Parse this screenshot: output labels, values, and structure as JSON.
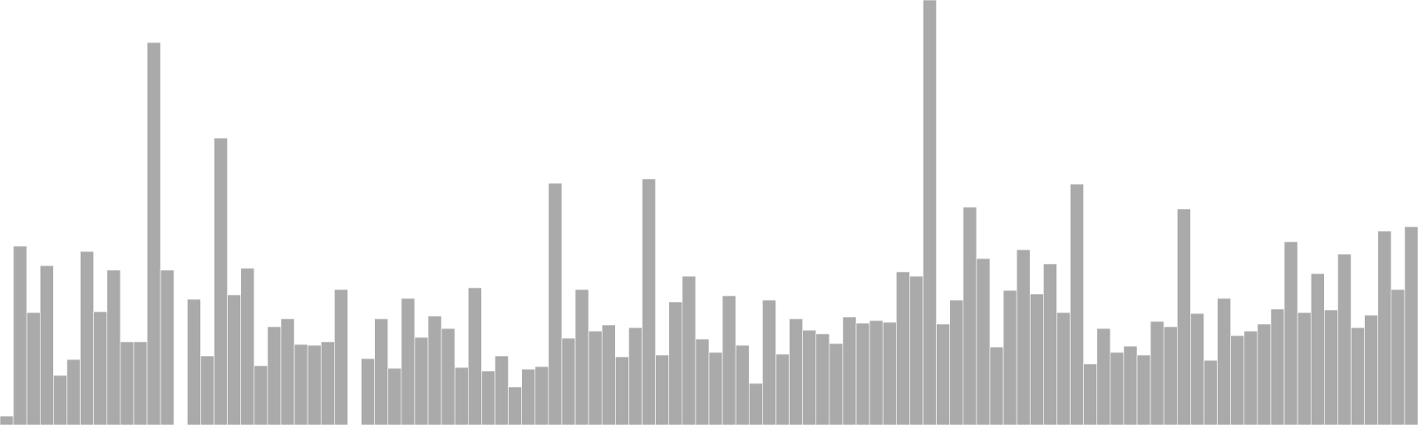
{
  "chart_data": {
    "type": "bar",
    "bar_color": "#aaaaaa",
    "bar_edge_color": "#ffffff",
    "background": "#ffffff",
    "grid": false,
    "axes_visible": false,
    "ylim": [
      0,
      480
    ],
    "values": [
      10,
      202,
      127,
      180,
      56,
      74,
      196,
      128,
      175,
      94,
      94,
      432,
      175,
      0,
      142,
      78,
      324,
      147,
      177,
      67,
      111,
      120,
      91,
      90,
      94,
      153,
      0,
      75,
      120,
      64,
      143,
      99,
      123,
      109,
      65,
      155,
      61,
      78,
      43,
      63,
      66,
      273,
      98,
      153,
      106,
      113,
      77,
      110,
      278,
      79,
      139,
      168,
      97,
      82,
      146,
      90,
      47,
      141,
      80,
      120,
      107,
      103,
      92,
      122,
      115,
      118,
      116,
      173,
      168,
      480,
      114,
      141,
      246,
      188,
      88,
      152,
      198,
      148,
      182,
      127,
      272,
      69,
      109,
      82,
      89,
      79,
      117,
      111,
      244,
      126,
      73,
      143,
      101,
      106,
      114,
      131,
      207,
      127,
      171,
      130,
      193,
      110,
      124,
      219,
      153,
      224
    ]
  }
}
